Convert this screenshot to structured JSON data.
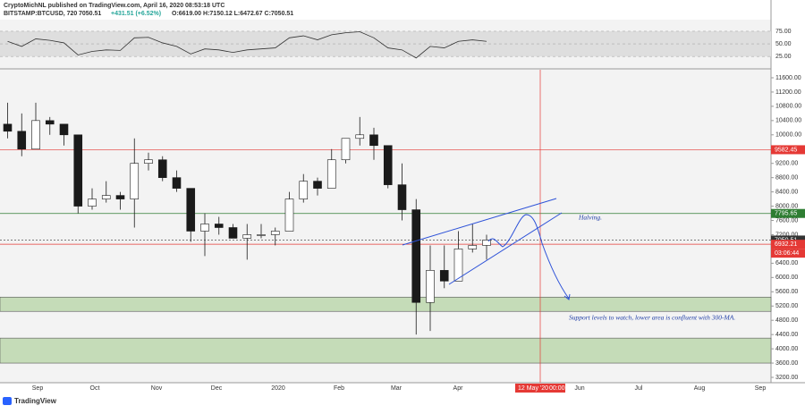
{
  "header": {
    "publisher": "CryptoMichNL published on TradingView.com, April 16, 2020 08:53:18 UTC",
    "symbol": "BITSTAMP:BTCUSD, 720",
    "last": "7050.51",
    "change": "+431.51 (+6.52%)",
    "ohlc": "O:6619.00 H:7150.12 L:6472.67 C:7050.51"
  },
  "chart_data": {
    "type": "candlestick",
    "up_color": "#ffffff",
    "down_color": "#1a1a1a",
    "open": [
      10300,
      10100,
      9600,
      10400,
      10300,
      10000,
      8000,
      8200,
      8300,
      8200,
      9200,
      9300,
      8800,
      8500,
      7300,
      7500,
      7400,
      7100,
      7200,
      7200,
      7300,
      8200,
      8700,
      8500,
      9300,
      9900,
      10000,
      9700,
      8600,
      7900,
      5300,
      6200,
      5900,
      6800,
      6900
    ],
    "high": [
      10900,
      10600,
      10900,
      10500,
      10300,
      10000,
      8500,
      8700,
      8400,
      9900,
      9500,
      9400,
      9000,
      8500,
      7800,
      7700,
      7500,
      7500,
      7500,
      7400,
      8400,
      8900,
      8800,
      9600,
      9900,
      10500,
      10200,
      9700,
      9200,
      8200,
      6900,
      6900,
      7300,
      7500,
      7200
    ],
    "low": [
      9900,
      9400,
      9600,
      10000,
      9700,
      7800,
      7900,
      8100,
      7900,
      7400,
      9000,
      8700,
      8400,
      7000,
      6600,
      7200,
      7100,
      6500,
      7100,
      6900,
      7300,
      8100,
      8300,
      8500,
      9200,
      9700,
      9300,
      8500,
      7600,
      4400,
      4500,
      5700,
      5900,
      6700,
      6500
    ],
    "close": [
      10100,
      9600,
      10400,
      10300,
      10000,
      8000,
      8200,
      8300,
      8200,
      9200,
      9300,
      8800,
      8500,
      7300,
      7500,
      7400,
      7100,
      7200,
      7200,
      7300,
      8200,
      8700,
      8500,
      9300,
      9900,
      10000,
      9700,
      8600,
      7900,
      5300,
      6200,
      5900,
      6800,
      6900,
      7050.51
    ],
    "ylim": [
      3050,
      11825
    ],
    "yticks": [
      {
        "value": 11600,
        "label": "11600.00"
      },
      {
        "value": 11200,
        "label": "11200.00"
      },
      {
        "value": 10800,
        "label": "10800.00"
      },
      {
        "value": 10400,
        "label": "10400.00"
      },
      {
        "value": 10000,
        "label": "10000.00"
      },
      {
        "value": 9600,
        "label": "9600.00"
      },
      {
        "value": 9200,
        "label": "9200.00"
      },
      {
        "value": 8800,
        "label": "8800.00"
      },
      {
        "value": 8400,
        "label": "8400.00"
      },
      {
        "value": 8000,
        "label": "8000.00"
      },
      {
        "value": 7600,
        "label": "7600.00"
      },
      {
        "value": 7200,
        "label": "7200.00"
      },
      {
        "value": 6800,
        "label": "6800.00"
      },
      {
        "value": 6400,
        "label": "6400.00"
      },
      {
        "value": 6000,
        "label": "6000.00"
      },
      {
        "value": 5600,
        "label": "5600.00"
      },
      {
        "value": 5200,
        "label": "5200.00"
      },
      {
        "value": 4800,
        "label": "4800.00"
      },
      {
        "value": 4400,
        "label": "4400.00"
      },
      {
        "value": 4000,
        "label": "4000.00"
      },
      {
        "value": 3600,
        "label": "3600.00"
      },
      {
        "value": 3200,
        "label": "3200.00"
      }
    ],
    "x_labels": [
      "Sep",
      "Oct",
      "Nov",
      "Dec",
      "2020",
      "Feb",
      "Mar",
      "Apr",
      "Jun",
      "Jul",
      "Aug",
      "Sep"
    ],
    "levels": [
      {
        "value": 9582.45,
        "color": "#e53935"
      },
      {
        "value": 7795.65,
        "color": "#2e7d32"
      },
      {
        "value": 7050.51,
        "color": "#333333"
      },
      {
        "value": 6932.21,
        "color": "#e53935"
      }
    ],
    "countdown": "03:06:44",
    "zones": [
      {
        "from": 5450,
        "to": 5050,
        "color": "#c5dcb8"
      },
      {
        "from": 4300,
        "to": 3600,
        "color": "#c5dcb8"
      }
    ],
    "cursor_date": "12 May '20",
    "cursor_time": "00:00",
    "annotations": [
      "Halving.",
      "Support levels to watch, lower area is confluent with 300-MA."
    ],
    "rsi": {
      "values": [
        55,
        45,
        60,
        57,
        52,
        28,
        35,
        38,
        37,
        62,
        63,
        52,
        45,
        30,
        40,
        38,
        33,
        38,
        40,
        42,
        62,
        66,
        58,
        68,
        72,
        74,
        62,
        42,
        38,
        22,
        45,
        42,
        55,
        58,
        55
      ],
      "color": "#333333",
      "ylim": [
        4,
        98
      ],
      "yticks": [
        {
          "value": 75,
          "label": "75.00"
        },
        {
          "value": 50,
          "label": "50.00"
        },
        {
          "value": 25,
          "label": "25.00"
        }
      ]
    },
    "brand": "TradingView"
  }
}
